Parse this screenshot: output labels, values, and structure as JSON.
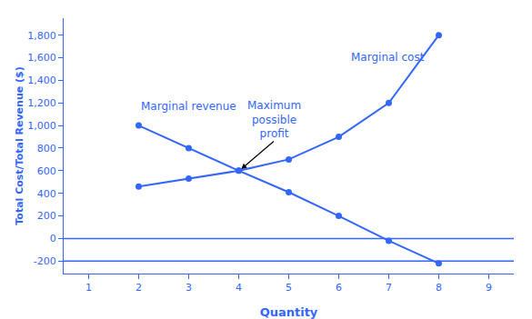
{
  "chart_data": {
    "type": "line",
    "color": "#3366ff",
    "marker": "circle",
    "grid": false,
    "x_label": "Quantity",
    "y_label": "Total Cost/Total Revenue ($)",
    "series": [
      {
        "x": [
          2,
          3,
          4,
          5,
          6,
          7,
          8
        ],
        "values": [
          1000,
          800,
          600,
          700,
          900,
          1200,
          1800
        ],
        "color": "#3366ff"
      },
      {
        "x": [
          2,
          3,
          4,
          5,
          6,
          7,
          8
        ],
        "values": [
          460,
          530,
          600,
          410,
          200,
          -20,
          -220
        ],
        "color": "#3366ff"
      }
    ],
    "hlines": [
      0,
      -200
    ],
    "xlim": [
      0.5,
      9.5
    ],
    "ylim": [
      -310,
      1950
    ],
    "xticks": [
      1,
      2,
      3,
      4,
      5,
      6,
      7,
      8,
      9
    ],
    "yticks": [
      -200,
      0,
      200,
      400,
      600,
      800,
      {
        "value": 1000,
        "label": "1,000"
      },
      {
        "value": 1200,
        "label": "1,200"
      },
      {
        "value": 1400,
        "label": "1,400"
      },
      {
        "value": 1600,
        "label": "1,600"
      },
      {
        "value": 1800,
        "label": "1,800"
      }
    ],
    "annotations": [
      {
        "text": "Marginal cost",
        "x": 6.2,
        "y": 1530
      },
      {
        "text": "Marginal revenue",
        "x": 2.0,
        "y": 1100
      },
      {
        "text": "Maximum\npossible\nprofit",
        "x": 4.7,
        "y": 860,
        "arrow_x": 4.05,
        "arrow_y": 615
      }
    ]
  }
}
